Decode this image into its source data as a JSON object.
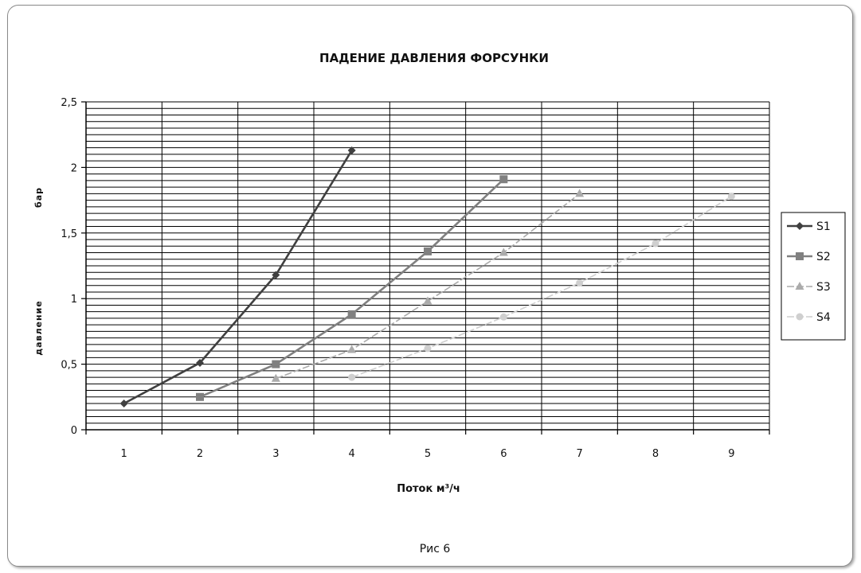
{
  "chart_data": {
    "type": "line",
    "title": "ПАДЕНИЕ ДАВЛЕНИЯ ФОРСУНКИ",
    "xlabel": "Поток м³/ч",
    "ylabel_parts": [
      "бар",
      "давление"
    ],
    "caption": "Рис 6",
    "x_categories": [
      "1",
      "2",
      "3",
      "4",
      "5",
      "6",
      "7",
      "8",
      "9"
    ],
    "y_ticks": [
      "0",
      "0,5",
      "1",
      "1,5",
      "2",
      "2,5"
    ],
    "ylim": [
      0,
      2.5
    ],
    "grid": true,
    "legend_position": "right",
    "series": [
      {
        "name": "S1",
        "color": "#404040",
        "marker": "diamond",
        "dashed": false,
        "points": [
          [
            1,
            0.2
          ],
          [
            2,
            0.51
          ],
          [
            3,
            1.18
          ],
          [
            4,
            2.13
          ]
        ]
      },
      {
        "name": "S2",
        "color": "#808080",
        "marker": "square",
        "dashed": false,
        "points": [
          [
            2,
            0.25
          ],
          [
            3,
            0.5
          ],
          [
            4,
            0.88
          ],
          [
            5,
            1.36
          ],
          [
            6,
            1.91
          ]
        ]
      },
      {
        "name": "S3",
        "color": "#ababab",
        "marker": "triangle",
        "dashed": true,
        "points": [
          [
            3,
            0.39
          ],
          [
            4,
            0.61
          ],
          [
            5,
            0.98
          ],
          [
            6,
            1.35
          ],
          [
            7,
            1.8
          ]
        ]
      },
      {
        "name": "S4",
        "color": "#cfcfcf",
        "marker": "circle",
        "dashed": true,
        "points": [
          [
            4,
            0.4
          ],
          [
            5,
            0.62
          ],
          [
            6,
            0.86
          ],
          [
            7,
            1.12
          ],
          [
            8,
            1.42
          ],
          [
            9,
            1.78
          ]
        ]
      }
    ]
  }
}
